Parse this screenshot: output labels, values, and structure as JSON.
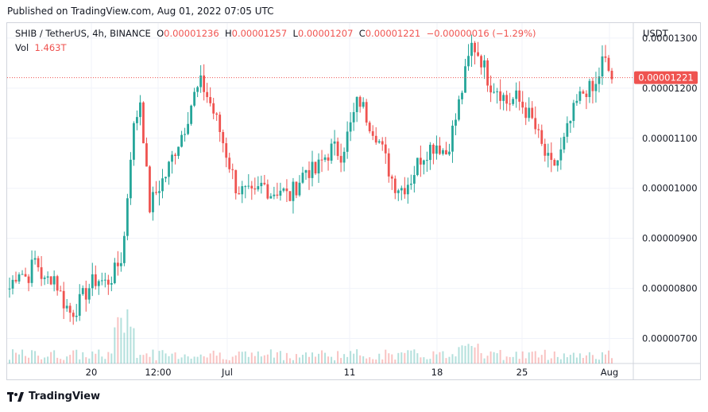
{
  "header": {
    "published": "Published on TradingView.com, Aug 01, 2022 07:05 UTC"
  },
  "legend": {
    "symbol": "SHIB / TetherUS, 4h, BINANCE",
    "open_label": "O",
    "open": "0.00001236",
    "high_label": "H",
    "high": "0.00001257",
    "low_label": "L",
    "low": "0.00001207",
    "close_label": "C",
    "close": "0.00001221",
    "change": "−0.00000016 (−1.29%)",
    "vol_label": "Vol",
    "vol": "1.463T"
  },
  "chart_data": {
    "type": "candlestick",
    "currency": "USDT",
    "ylim": [
      6.5e-06,
      1.33e-05
    ],
    "y_ticks": [
      "0.00000700",
      "0.00000800",
      "0.00000900",
      "0.00001000",
      "0.00001100",
      "0.00001200",
      "0.00001300"
    ],
    "x_ticks": [
      "20",
      "12:00",
      "Jul",
      "11",
      "18",
      "25",
      "Aug"
    ],
    "last_price": "0.00001221",
    "grid": true,
    "colors": {
      "up": "#26a69a",
      "down": "#ef5350",
      "last_line": "#ef5350",
      "grid": "#f0f3fa"
    },
    "trend_close": [
      8e-06,
      8.4e-06,
      8.2e-06,
      8.6e-06,
      8.1e-06,
      8.3e-06,
      7.8e-06,
      7.5e-06,
      7.7e-06,
      8e-06,
      8.2e-06,
      8.1e-06,
      8.3e-06,
      8.7e-06,
      1.1e-05,
      1.18e-05,
      9.6e-06,
      1e-05,
      1.03e-05,
      1.08e-05,
      1.12e-05,
      1.18e-05,
      1.21e-05,
      1.17e-05,
      1.12e-05,
      1.06e-05,
      1e-05,
      9.9e-06,
      9.8e-06,
      1.01e-05,
      9.9e-06,
      1e-05,
      9.8e-06,
      1.01e-05,
      1.04e-05,
      1.03e-05,
      1.06e-05,
      1.08e-05,
      1.07e-05,
      1.12e-05,
      1.18e-05,
      1.14e-05,
      1.11e-05,
      1.06e-05,
      1.01e-05,
      1e-05,
      1.02e-05,
      1.06e-05,
      1.08e-05,
      1.09e-05,
      1.07e-05,
      1.13e-05,
      1.21e-05,
      1.29e-05,
      1.26e-05,
      1.21e-05,
      1.2e-05,
      1.17e-05,
      1.18e-05,
      1.16e-05,
      1.13e-05,
      1.08e-05,
      1.04e-05,
      1.06e-05,
      1.12e-05,
      1.17e-05,
      1.2e-05,
      1.19e-05,
      1.26e-05,
      1.22e-05
    ]
  }
}
